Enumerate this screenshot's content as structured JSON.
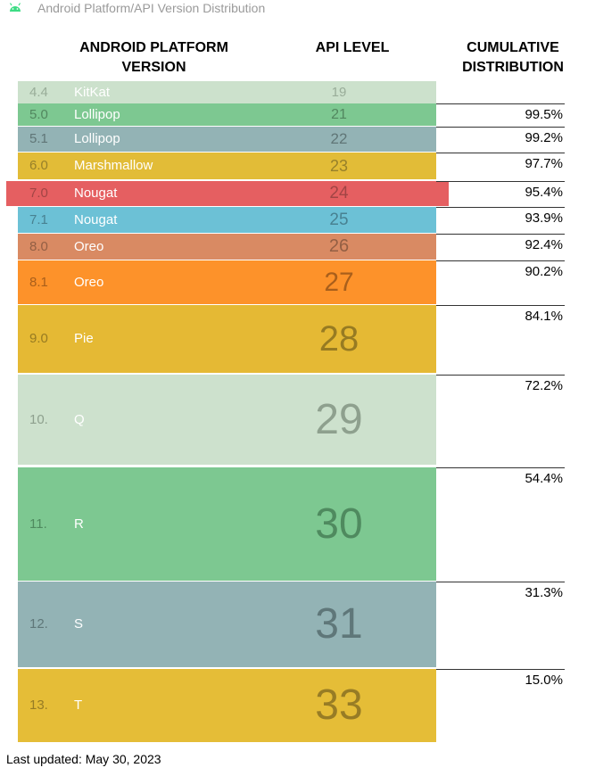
{
  "window": {
    "title": "Android Platform/API Version Distribution",
    "icon": "android-icon",
    "icon_color": "#3ddc84"
  },
  "headers": {
    "version_line1": "ANDROID PLATFORM",
    "version_line2": "VERSION",
    "api": "API LEVEL",
    "cumulative_line1": "CUMULATIVE",
    "cumulative_line2": "DISTRIBUTION"
  },
  "rows": [
    {
      "version": "4.4",
      "name": "KitKat",
      "api": "19",
      "cumulative": "",
      "bg": "#cce1cc",
      "fg": "#99ad99"
    },
    {
      "version": "5.0",
      "name": "Lollipop",
      "api": "21",
      "cumulative": "99.5%",
      "bg": "#7dc891",
      "fg": "#52875f"
    },
    {
      "version": "5.1",
      "name": "Lollipop",
      "api": "22",
      "cumulative": "99.2%",
      "bg": "#93b3b5",
      "fg": "#607677"
    },
    {
      "version": "6.0",
      "name": "Marshmallow",
      "api": "23",
      "cumulative": "97.7%",
      "bg": "#e2bc37",
      "fg": "#97802a"
    },
    {
      "version": "7.0",
      "name": "Nougat",
      "api": "24",
      "cumulative": "95.4%",
      "bg": "#e55f61",
      "fg": "#a14545"
    },
    {
      "version": "7.1",
      "name": "Nougat",
      "api": "25",
      "cumulative": "93.9%",
      "bg": "#6cc1d6",
      "fg": "#488191"
    },
    {
      "version": "8.0",
      "name": "Oreo",
      "api": "26",
      "cumulative": "92.4%",
      "bg": "#d98a63",
      "fg": "#935f44"
    },
    {
      "version": "8.1",
      "name": "Oreo",
      "api": "27",
      "cumulative": "90.2%",
      "bg": "#fd922a",
      "fg": "#a95f1b"
    },
    {
      "version": "9.0",
      "name": "Pie",
      "api": "28",
      "cumulative": "84.1%",
      "bg": "#e5b934",
      "fg": "#977b22"
    },
    {
      "version": "10.",
      "name": "Q",
      "api": "29",
      "cumulative": "72.2%",
      "bg": "#cde1cd",
      "fg": "#8ea08e"
    },
    {
      "version": "11.",
      "name": "R",
      "api": "30",
      "cumulative": "54.4%",
      "bg": "#7dc891",
      "fg": "#4f8a5f"
    },
    {
      "version": "12.",
      "name": "S",
      "api": "31",
      "cumulative": "31.3%",
      "bg": "#93b3b5",
      "fg": "#5f7779"
    },
    {
      "version": "13.",
      "name": "T",
      "api": "33",
      "cumulative": "15.0%",
      "bg": "#e5bd37",
      "fg": "#977c25"
    }
  ],
  "footer": {
    "last_updated": "Last updated: May 30, 2023"
  }
}
